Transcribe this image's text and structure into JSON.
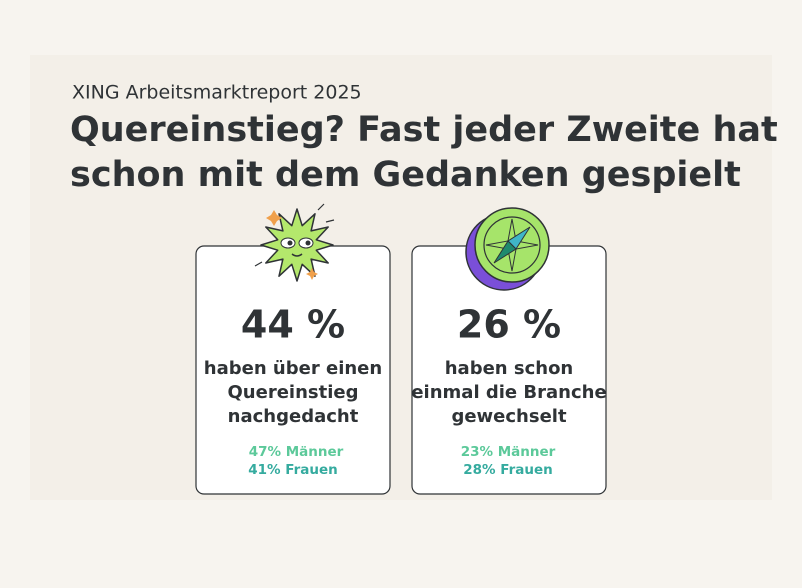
{
  "header": {
    "source": "XING Arbeitsmarktreport 2025",
    "title": [
      "Quereinstieg? Fast jeder Zweite hat",
      "schon mit dem Gedanken gespielt"
    ]
  },
  "cards": [
    {
      "value": "44 %",
      "text": [
        "haben über einen",
        "Quereinstieg",
        "nachgedacht"
      ],
      "breakdown": [
        "47% Männer",
        "41% Frauen"
      ]
    },
    {
      "value": "26 %",
      "text": [
        "haben schon",
        "einmal die Branche",
        "gewechselt"
      ],
      "breakdown": [
        "23% Männer",
        "28% Frauen"
      ]
    }
  ]
}
